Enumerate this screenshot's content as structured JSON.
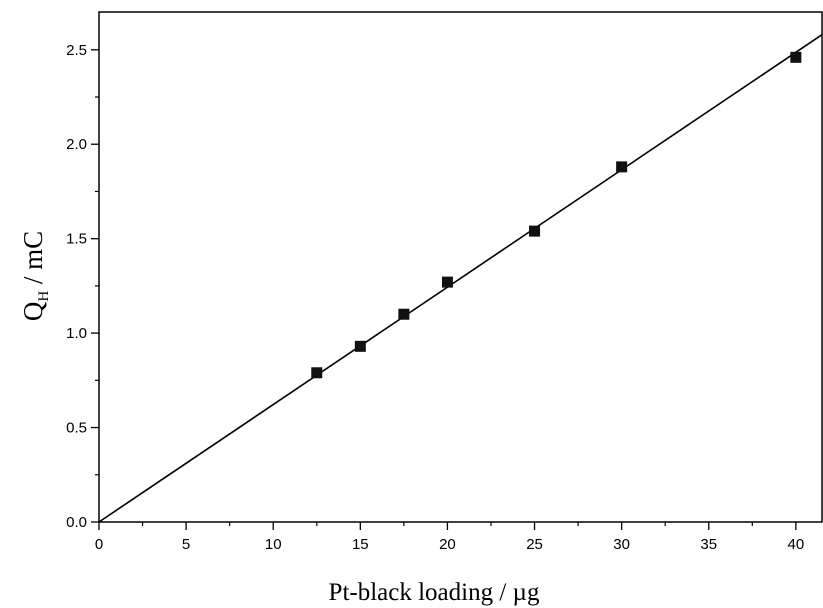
{
  "chart_data": {
    "type": "scatter",
    "xlabel": "Pt-black loading / µg",
    "ylabel_main": "Q",
    "ylabel_sub": "H",
    "ylabel_unit": " / mC",
    "xlim": [
      0,
      41.5
    ],
    "ylim": [
      0,
      2.7
    ],
    "xticks": [
      0,
      5,
      10,
      15,
      20,
      25,
      30,
      35,
      40
    ],
    "xtick_labels": [
      "0",
      "5",
      "10",
      "15",
      "20",
      "25",
      "30",
      "35",
      "40"
    ],
    "yticks": [
      0.0,
      0.5,
      1.0,
      1.5,
      2.0,
      2.5
    ],
    "ytick_labels": [
      "0.0",
      "0.5",
      "1.0",
      "1.5",
      "2.0",
      "2.5"
    ],
    "grid": false,
    "series": [
      {
        "marker": "square",
        "color": "#111111",
        "x": [
          12.5,
          15,
          17.5,
          20,
          25,
          30,
          40
        ],
        "y": [
          0.79,
          0.93,
          1.1,
          1.27,
          1.54,
          1.88,
          2.46
        ]
      }
    ],
    "fit_line": {
      "x": [
        0,
        41.5
      ],
      "y": [
        0,
        2.58
      ],
      "color": "#000000"
    }
  }
}
